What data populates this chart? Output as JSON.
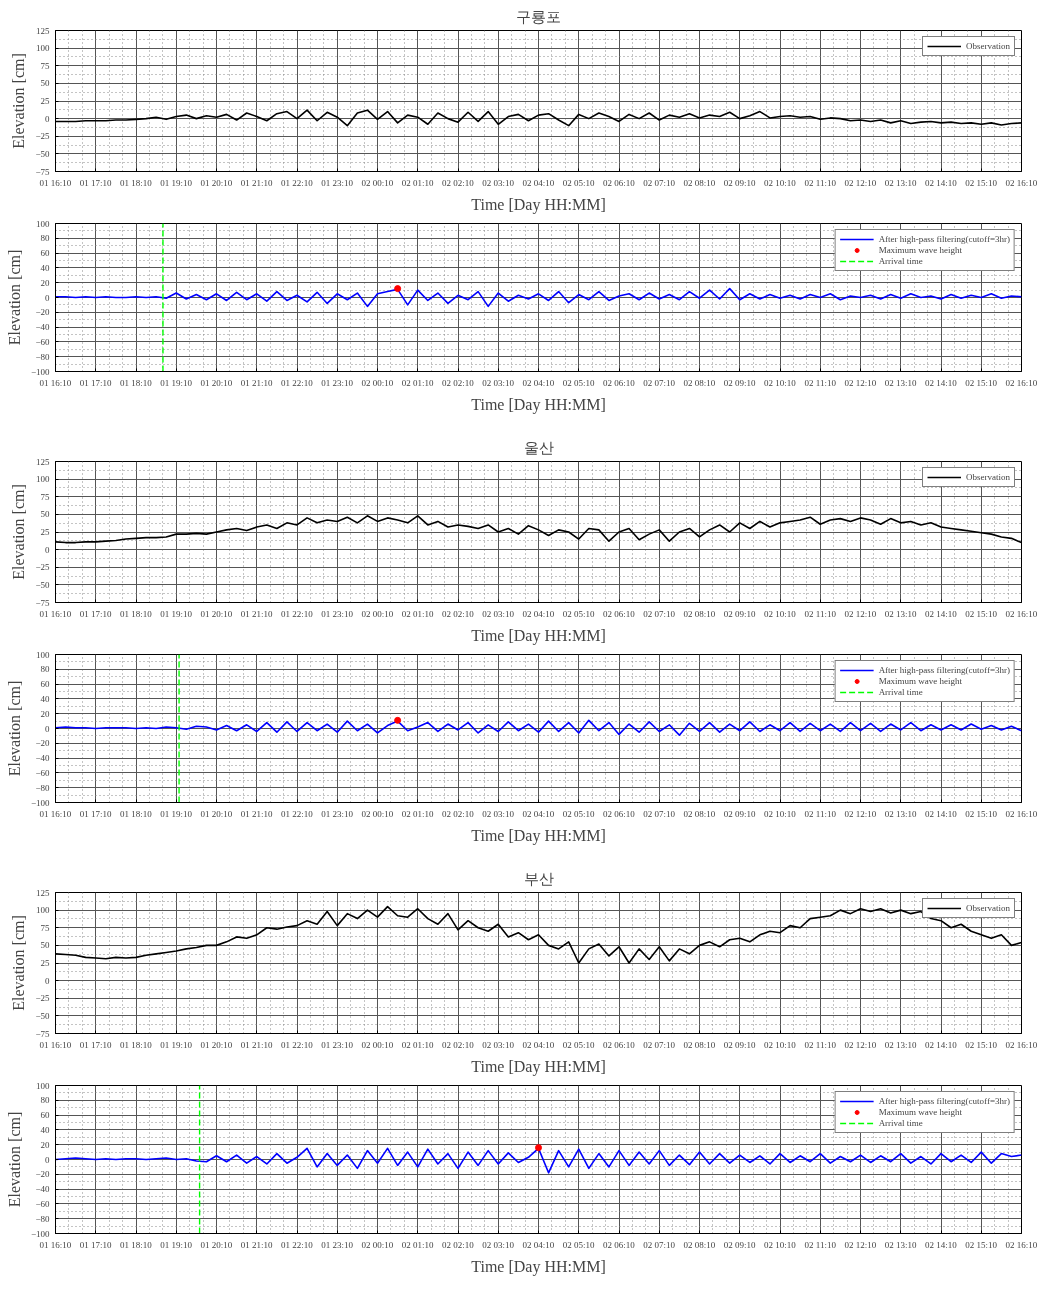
{
  "chart_data": [
    {
      "type": "line",
      "title": "구룡포",
      "xlabel": "Time [Day HH:MM]",
      "ylabel": "Elevation [cm]",
      "ylim": [
        -75,
        125
      ],
      "yticks": [
        -75,
        -50,
        -25,
        0,
        25,
        50,
        75,
        100,
        125
      ],
      "grid": true,
      "legend": "top right",
      "categories": [
        "01 16:10",
        null,
        null,
        null,
        "01 17:10",
        null,
        null,
        null,
        "01 18:10",
        null,
        null,
        null,
        "01 19:10",
        null,
        null,
        null,
        "01 20:10",
        null,
        null,
        null,
        "01 21:10",
        null,
        null,
        null,
        "01 22:10",
        null,
        null,
        null,
        "01 23:10",
        null,
        null,
        null,
        "02 00:10",
        null,
        null,
        null,
        "02 01:10",
        null,
        null,
        null,
        "02 02:10",
        null,
        null,
        null,
        "02 03:10",
        null,
        null,
        null,
        "02 04:10",
        null,
        null,
        null,
        "02 05:10",
        null,
        null,
        null,
        "02 06:10",
        null,
        null,
        null,
        "02 07:10",
        null,
        null,
        null,
        "02 08:10",
        null,
        null,
        null,
        "02 09:10",
        null,
        null,
        null,
        "02 10:10",
        null,
        null,
        null,
        "02 11:10",
        null,
        null,
        null,
        "02 12:10",
        null,
        null,
        null,
        "02 13:10",
        null,
        null,
        null,
        "02 14:10",
        null,
        null,
        null,
        "02 15:10",
        null,
        null,
        null,
        "02 16:10"
      ],
      "series": [
        {
          "name": "Observation",
          "color": "#000000",
          "values": [
            -4,
            -4,
            -4,
            -3,
            -3,
            -3,
            -2,
            -2,
            -1,
            0,
            2,
            -1,
            3,
            5,
            0,
            4,
            2,
            6,
            -2,
            8,
            3,
            -3,
            7,
            10,
            0,
            12,
            -3,
            9,
            2,
            -10,
            8,
            12,
            -1,
            10,
            -6,
            5,
            2,
            -8,
            8,
            0,
            -5,
            9,
            -4,
            10,
            -8,
            3,
            6,
            -3,
            5,
            7,
            -2,
            -10,
            6,
            0,
            8,
            3,
            -4,
            6,
            0,
            8,
            -2,
            5,
            2,
            7,
            1,
            5,
            3,
            9,
            0,
            4,
            10,
            1,
            3,
            4,
            2,
            3,
            -1,
            1,
            0,
            -3,
            -2,
            -4,
            -2,
            -6,
            -3,
            -7,
            -5,
            -4,
            -6,
            -5,
            -7,
            -6,
            -8,
            -6,
            -9,
            -7,
            -6
          ]
        }
      ]
    },
    {
      "type": "line",
      "xlabel": "Time [Day HH:MM]",
      "ylabel": "Elevation [cm]",
      "ylim": [
        -100,
        100
      ],
      "yticks": [
        -100,
        -80,
        -60,
        -40,
        -20,
        0,
        20,
        40,
        60,
        80,
        100
      ],
      "grid": true,
      "legend": "top right",
      "categories": [
        "01 16:10",
        null,
        null,
        null,
        "01 17:10",
        null,
        null,
        null,
        "01 18:10",
        null,
        null,
        null,
        "01 19:10",
        null,
        null,
        null,
        "01 20:10",
        null,
        null,
        null,
        "01 21:10",
        null,
        null,
        null,
        "01 22:10",
        null,
        null,
        null,
        "01 23:10",
        null,
        null,
        null,
        "02 00:10",
        null,
        null,
        null,
        "02 01:10",
        null,
        null,
        null,
        "02 02:10",
        null,
        null,
        null,
        "02 03:10",
        null,
        null,
        null,
        "02 04:10",
        null,
        null,
        null,
        "02 05:10",
        null,
        null,
        null,
        "02 06:10",
        null,
        null,
        null,
        "02 07:10",
        null,
        null,
        null,
        "02 08:10",
        null,
        null,
        null,
        "02 09:10",
        null,
        null,
        null,
        "02 10:10",
        null,
        null,
        null,
        "02 11:10",
        null,
        null,
        null,
        "02 12:10",
        null,
        null,
        null,
        "02 13:10",
        null,
        null,
        null,
        "02 14:10",
        null,
        null,
        null,
        "02 15:10",
        null,
        null,
        null,
        "02 16:10"
      ],
      "series": [
        {
          "name": "After high-pass filtering(cutoff=3hr)",
          "color": "#0000ff",
          "values": [
            1,
            1,
            0,
            1,
            0,
            1,
            0,
            0,
            1,
            0,
            1,
            -1,
            6,
            -2,
            4,
            -3,
            5,
            -4,
            7,
            -3,
            5,
            -5,
            8,
            -4,
            3,
            -6,
            7,
            -8,
            5,
            -3,
            6,
            -12,
            5,
            8,
            11,
            -10,
            10,
            -4,
            6,
            -8,
            3,
            -3,
            8,
            -12,
            6,
            -5,
            3,
            -2,
            5,
            -4,
            8,
            -7,
            4,
            -3,
            8,
            -4,
            2,
            5,
            -3,
            6,
            -2,
            4,
            -3,
            8,
            -1,
            10,
            -2,
            12,
            -3,
            5,
            -2,
            4,
            -1,
            3,
            -2,
            4,
            0,
            5,
            -3,
            2,
            0,
            3,
            -2,
            4,
            -1,
            5,
            0,
            2,
            -2,
            4,
            -1,
            3,
            0,
            5,
            -1,
            2,
            1
          ]
        },
        {
          "name": "Maximum wave height",
          "type": "scatter",
          "marker": "circle",
          "color": "#ff0000",
          "values": [
            null,
            null,
            null,
            null,
            null,
            null,
            null,
            null,
            null,
            null,
            null,
            null,
            null,
            null,
            null,
            null,
            null,
            null,
            null,
            null,
            null,
            null,
            null,
            null,
            null,
            null,
            null,
            null,
            null,
            null,
            null,
            null,
            null,
            null,
            12,
            null,
            null,
            null,
            null,
            null,
            null,
            null,
            null,
            null,
            null,
            null,
            null,
            null,
            null,
            null,
            null,
            null,
            null,
            null,
            null,
            null,
            null,
            null,
            null,
            null,
            null,
            null,
            null,
            null,
            null,
            null,
            null,
            null,
            null,
            null,
            null,
            null,
            null,
            null,
            null,
            null,
            null,
            null,
            null,
            null,
            null,
            null,
            null,
            null,
            null,
            null,
            null,
            null,
            null,
            null,
            null,
            null,
            null,
            null,
            null,
            null,
            null
          ]
        }
      ],
      "ref_lines": [
        {
          "axis": "x",
          "label": "Arrival time",
          "color": "#00ff00",
          "line_style": "dashed"
        }
      ]
    },
    {
      "type": "line",
      "title": "울산",
      "xlabel": "Time [Day HH:MM]",
      "ylabel": "Elevation [cm]",
      "ylim": [
        -75,
        125
      ],
      "yticks": [
        -75,
        -50,
        -25,
        0,
        25,
        50,
        75,
        100,
        125
      ],
      "grid": true,
      "legend": "top right",
      "categories": [
        "01 16:10",
        null,
        null,
        null,
        "01 17:10",
        null,
        null,
        null,
        "01 18:10",
        null,
        null,
        null,
        "01 19:10",
        null,
        null,
        null,
        "01 20:10",
        null,
        null,
        null,
        "01 21:10",
        null,
        null,
        null,
        "01 22:10",
        null,
        null,
        null,
        "01 23:10",
        null,
        null,
        null,
        "02 00:10",
        null,
        null,
        null,
        "02 01:10",
        null,
        null,
        null,
        "02 02:10",
        null,
        null,
        null,
        "02 03:10",
        null,
        null,
        null,
        "02 04:10",
        null,
        null,
        null,
        "02 05:10",
        null,
        null,
        null,
        "02 06:10",
        null,
        null,
        null,
        "02 07:10",
        null,
        null,
        null,
        "02 08:10",
        null,
        null,
        null,
        "02 09:10",
        null,
        null,
        null,
        "02 10:10",
        null,
        null,
        null,
        "02 11:10",
        null,
        null,
        null,
        "02 12:10",
        null,
        null,
        null,
        "02 13:10",
        null,
        null,
        null,
        "02 14:10",
        null,
        null,
        null,
        "02 15:10",
        null,
        null,
        null,
        "02 16:10"
      ],
      "series": [
        {
          "name": "Observation",
          "color": "#000000",
          "values": [
            11,
            10,
            10,
            11,
            11,
            12,
            13,
            15,
            16,
            17,
            17,
            18,
            22,
            22,
            23,
            22,
            25,
            28,
            30,
            27,
            32,
            35,
            30,
            38,
            35,
            45,
            38,
            42,
            40,
            46,
            38,
            48,
            40,
            45,
            42,
            38,
            48,
            35,
            40,
            32,
            35,
            33,
            30,
            35,
            25,
            30,
            22,
            34,
            28,
            20,
            28,
            25,
            15,
            30,
            28,
            12,
            25,
            30,
            14,
            22,
            28,
            12,
            25,
            30,
            18,
            28,
            35,
            25,
            38,
            30,
            40,
            32,
            38,
            40,
            42,
            46,
            36,
            42,
            44,
            40,
            45,
            42,
            36,
            44,
            38,
            40,
            35,
            38,
            32,
            30,
            28,
            26,
            24,
            22,
            18,
            16,
            10
          ]
        }
      ]
    },
    {
      "type": "line",
      "xlabel": "Time [Day HH:MM]",
      "ylabel": "Elevation [cm]",
      "ylim": [
        -100,
        100
      ],
      "yticks": [
        -100,
        -80,
        -60,
        -40,
        -20,
        0,
        20,
        40,
        60,
        80,
        100
      ],
      "grid": true,
      "legend": "top right",
      "categories": [
        "01 16:10",
        null,
        null,
        null,
        "01 17:10",
        null,
        null,
        null,
        "01 18:10",
        null,
        null,
        null,
        "01 19:10",
        null,
        null,
        null,
        "01 20:10",
        null,
        null,
        null,
        "01 21:10",
        null,
        null,
        null,
        "01 22:10",
        null,
        null,
        null,
        "01 23:10",
        null,
        null,
        null,
        "02 00:10",
        null,
        null,
        null,
        "02 01:10",
        null,
        null,
        null,
        "02 02:10",
        null,
        null,
        null,
        "02 03:10",
        null,
        null,
        null,
        "02 04:10",
        null,
        null,
        null,
        "02 05:10",
        null,
        null,
        null,
        "02 06:10",
        null,
        null,
        null,
        "02 07:10",
        null,
        null,
        null,
        "02 08:10",
        null,
        null,
        null,
        "02 09:10",
        null,
        null,
        null,
        "02 10:10",
        null,
        null,
        null,
        "02 11:10",
        null,
        null,
        null,
        "02 12:10",
        null,
        null,
        null,
        "02 13:10",
        null,
        null,
        null,
        "02 14:10",
        null,
        null,
        null,
        "02 15:10",
        null,
        null,
        null,
        "02 16:10"
      ],
      "series": [
        {
          "name": "After high-pass filtering(cutoff=3hr)",
          "color": "#0000ff",
          "values": [
            1,
            2,
            1,
            1,
            0,
            1,
            1,
            1,
            0,
            1,
            0,
            2,
            1,
            -1,
            3,
            2,
            -2,
            4,
            -3,
            5,
            -4,
            8,
            -5,
            9,
            -4,
            8,
            -3,
            6,
            -5,
            10,
            -3,
            6,
            -6,
            4,
            10,
            -3,
            2,
            8,
            -4,
            6,
            -2,
            8,
            -6,
            5,
            -4,
            9,
            -3,
            6,
            -5,
            10,
            -4,
            8,
            -6,
            11,
            -3,
            8,
            -8,
            6,
            -5,
            9,
            -4,
            5,
            -9,
            7,
            -4,
            8,
            -5,
            6,
            -3,
            9,
            -4,
            5,
            -3,
            8,
            -4,
            7,
            -3,
            6,
            -4,
            8,
            -3,
            7,
            -4,
            6,
            -2,
            8,
            -3,
            5,
            -2,
            5,
            -2,
            6,
            -1,
            4,
            -2,
            3,
            -3
          ]
        },
        {
          "name": "Maximum wave height",
          "type": "scatter",
          "marker": "circle",
          "color": "#ff0000",
          "values": [
            null,
            null,
            null,
            null,
            null,
            null,
            null,
            null,
            null,
            null,
            null,
            null,
            null,
            null,
            null,
            null,
            null,
            null,
            null,
            null,
            null,
            null,
            null,
            null,
            null,
            null,
            null,
            null,
            null,
            null,
            null,
            null,
            null,
            null,
            11,
            null,
            null,
            null,
            null,
            null,
            null,
            null,
            null,
            null,
            null,
            null,
            null,
            null,
            null,
            null,
            null,
            null,
            null,
            null,
            null,
            null,
            null,
            null,
            null,
            null,
            null,
            null,
            null,
            null,
            null,
            null,
            null,
            null,
            null,
            null,
            null,
            null,
            null,
            null,
            null,
            null,
            null,
            null,
            null,
            null,
            null,
            null,
            null,
            null,
            null,
            null,
            null,
            null,
            null,
            null,
            null,
            null,
            null,
            null,
            null,
            null,
            null
          ]
        }
      ],
      "ref_lines": [
        {
          "axis": "x",
          "label": "Arrival time",
          "color": "#00ff00",
          "line_style": "dashed"
        }
      ]
    },
    {
      "type": "line",
      "title": "부산",
      "xlabel": "Time [Day HH:MM]",
      "ylabel": "Elevation [cm]",
      "ylim": [
        -75,
        125
      ],
      "yticks": [
        -75,
        -50,
        -25,
        0,
        25,
        50,
        75,
        100,
        125
      ],
      "grid": true,
      "legend": "top right",
      "categories": [
        "01 16:10",
        null,
        null,
        null,
        "01 17:10",
        null,
        null,
        null,
        "01 18:10",
        null,
        null,
        null,
        "01 19:10",
        null,
        null,
        null,
        "01 20:10",
        null,
        null,
        null,
        "01 21:10",
        null,
        null,
        null,
        "01 22:10",
        null,
        null,
        null,
        "01 23:10",
        null,
        null,
        null,
        "02 00:10",
        null,
        null,
        null,
        "02 01:10",
        null,
        null,
        null,
        "02 02:10",
        null,
        null,
        null,
        "02 03:10",
        null,
        null,
        null,
        "02 04:10",
        null,
        null,
        null,
        "02 05:10",
        null,
        null,
        null,
        "02 06:10",
        null,
        null,
        null,
        "02 07:10",
        null,
        null,
        null,
        "02 08:10",
        null,
        null,
        null,
        "02 09:10",
        null,
        null,
        null,
        "02 10:10",
        null,
        null,
        null,
        "02 11:10",
        null,
        null,
        null,
        "02 12:10",
        null,
        null,
        null,
        "02 13:10",
        null,
        null,
        null,
        "02 14:10",
        null,
        null,
        null,
        "02 15:10",
        null,
        null,
        null,
        "02 16:10"
      ],
      "series": [
        {
          "name": "Observation",
          "color": "#000000",
          "values": [
            38,
            37,
            36,
            33,
            32,
            31,
            33,
            32,
            33,
            36,
            38,
            40,
            42,
            45,
            47,
            50,
            50,
            55,
            62,
            60,
            65,
            75,
            73,
            76,
            78,
            85,
            80,
            98,
            78,
            95,
            88,
            100,
            90,
            105,
            92,
            90,
            102,
            88,
            80,
            95,
            72,
            85,
            75,
            70,
            80,
            62,
            68,
            58,
            65,
            50,
            45,
            55,
            25,
            45,
            52,
            35,
            48,
            25,
            45,
            30,
            48,
            28,
            45,
            38,
            50,
            55,
            48,
            58,
            60,
            55,
            65,
            70,
            68,
            78,
            75,
            88,
            90,
            92,
            100,
            95,
            102,
            98,
            102,
            96,
            100,
            95,
            98,
            88,
            85,
            75,
            80,
            70,
            65,
            60,
            65,
            50,
            54
          ]
        }
      ]
    },
    {
      "type": "line",
      "xlabel": "Time [Day HH:MM]",
      "ylabel": "Elevation [cm]",
      "ylim": [
        -100,
        100
      ],
      "yticks": [
        -100,
        -80,
        -60,
        -40,
        -20,
        0,
        20,
        40,
        60,
        80,
        100
      ],
      "grid": true,
      "legend": "top right",
      "categories": [
        "01 16:10",
        null,
        null,
        null,
        "01 17:10",
        null,
        null,
        null,
        "01 18:10",
        null,
        null,
        null,
        "01 19:10",
        null,
        null,
        null,
        "01 20:10",
        null,
        null,
        null,
        "01 21:10",
        null,
        null,
        null,
        "01 22:10",
        null,
        null,
        null,
        "01 23:10",
        null,
        null,
        null,
        "02 00:10",
        null,
        null,
        null,
        "02 01:10",
        null,
        null,
        null,
        "02 02:10",
        null,
        null,
        null,
        "02 03:10",
        null,
        null,
        null,
        "02 04:10",
        null,
        null,
        null,
        "02 05:10",
        null,
        null,
        null,
        "02 06:10",
        null,
        null,
        null,
        "02 07:10",
        null,
        null,
        null,
        "02 08:10",
        null,
        null,
        null,
        "02 09:10",
        null,
        null,
        null,
        "02 10:10",
        null,
        null,
        null,
        "02 11:10",
        null,
        null,
        null,
        "02 12:10",
        null,
        null,
        null,
        "02 13:10",
        null,
        null,
        null,
        "02 14:10",
        null,
        null,
        null,
        "02 15:10",
        null,
        null,
        null,
        "02 16:10"
      ],
      "series": [
        {
          "name": "After high-pass filtering(cutoff=3hr)",
          "color": "#0000ff",
          "values": [
            0,
            1,
            2,
            1,
            0,
            1,
            0,
            1,
            1,
            0,
            1,
            2,
            0,
            1,
            -2,
            -3,
            5,
            -3,
            6,
            -5,
            4,
            -6,
            8,
            -5,
            3,
            15,
            -10,
            8,
            -8,
            6,
            -12,
            12,
            -5,
            15,
            -8,
            10,
            -10,
            14,
            -6,
            8,
            -12,
            10,
            -8,
            12,
            -6,
            9,
            -4,
            3,
            15,
            -18,
            12,
            -10,
            14,
            -12,
            8,
            -10,
            12,
            -8,
            10,
            -6,
            12,
            -8,
            6,
            -7,
            10,
            -6,
            8,
            -5,
            6,
            -4,
            5,
            -6,
            8,
            -4,
            5,
            -3,
            8,
            -5,
            4,
            -3,
            6,
            -4,
            5,
            -3,
            8,
            -5,
            4,
            -6,
            8,
            -3,
            6,
            -4,
            10,
            -5,
            8,
            4,
            6
          ]
        },
        {
          "name": "Maximum wave height",
          "type": "scatter",
          "marker": "circle",
          "color": "#ff0000",
          "values": [
            null,
            null,
            null,
            null,
            null,
            null,
            null,
            null,
            null,
            null,
            null,
            null,
            null,
            null,
            null,
            null,
            null,
            null,
            null,
            null,
            null,
            null,
            null,
            null,
            null,
            null,
            null,
            null,
            null,
            null,
            null,
            null,
            null,
            null,
            null,
            null,
            null,
            null,
            null,
            null,
            null,
            null,
            null,
            null,
            null,
            null,
            null,
            null,
            16,
            null,
            null,
            null,
            null,
            null,
            null,
            null,
            null,
            null,
            null,
            null,
            null,
            null,
            null,
            null,
            null,
            null,
            null,
            null,
            null,
            null,
            null,
            null,
            null,
            null,
            null,
            null,
            null,
            null,
            null,
            null,
            null,
            null,
            null,
            null,
            null,
            null,
            null,
            null,
            null,
            null,
            null,
            null,
            null,
            null,
            null,
            null,
            null
          ]
        }
      ],
      "ref_lines": [
        {
          "axis": "x",
          "label": "Arrival time",
          "color": "#00ff00",
          "line_style": "dashed"
        }
      ]
    }
  ]
}
